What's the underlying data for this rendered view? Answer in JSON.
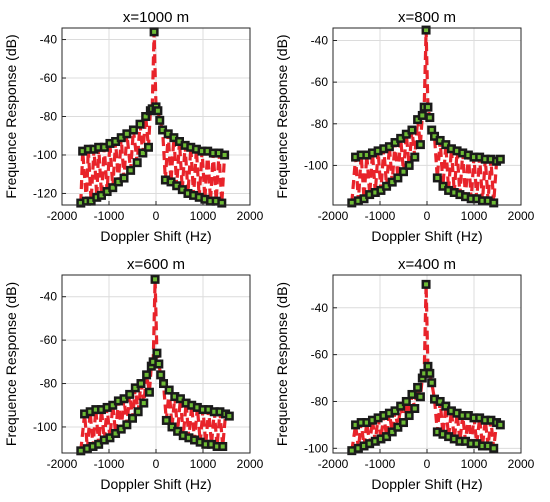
{
  "chart_data": [
    {
      "type": "line",
      "title": "x=1000 m",
      "xlabel": "Doppler Shift (Hz)",
      "ylabel": "Frequence Response (dB)",
      "xlim": [
        -2000,
        2000
      ],
      "ylim": [
        -126,
        -34
      ],
      "xticks": [
        -2000,
        -1000,
        0,
        1000,
        2000
      ],
      "yticks": [
        -40,
        -60,
        -80,
        -100,
        -120
      ],
      "grid": true,
      "series_style": "red dashed line with dark square markers and green centres",
      "points": [
        [
          -1600,
          -125
        ],
        [
          -1560,
          -98
        ],
        [
          -1480,
          -124
        ],
        [
          -1440,
          -97
        ],
        [
          -1380,
          -124
        ],
        [
          -1320,
          -97
        ],
        [
          -1260,
          -122
        ],
        [
          -1220,
          -96
        ],
        [
          -1160,
          -121
        ],
        [
          -1100,
          -96
        ],
        [
          -1040,
          -119
        ],
        [
          -980,
          -94
        ],
        [
          -920,
          -117
        ],
        [
          -860,
          -93
        ],
        [
          -800,
          -114
        ],
        [
          -740,
          -91
        ],
        [
          -680,
          -112
        ],
        [
          -620,
          -89
        ],
        [
          -540,
          -108
        ],
        [
          -480,
          -87
        ],
        [
          -400,
          -104
        ],
        [
          -340,
          -84
        ],
        [
          -280,
          -99
        ],
        [
          -220,
          -80
        ],
        [
          -160,
          -96
        ],
        [
          -120,
          -77
        ],
        [
          -80,
          -76
        ],
        [
          -40,
          -36
        ],
        [
          0,
          -75
        ],
        [
          40,
          -77
        ],
        [
          80,
          -82
        ],
        [
          140,
          -87
        ],
        [
          200,
          -113
        ],
        [
          260,
          -89
        ],
        [
          320,
          -114
        ],
        [
          380,
          -91
        ],
        [
          440,
          -116
        ],
        [
          500,
          -93
        ],
        [
          560,
          -118
        ],
        [
          620,
          -95
        ],
        [
          680,
          -120
        ],
        [
          740,
          -96
        ],
        [
          800,
          -121
        ],
        [
          860,
          -97
        ],
        [
          920,
          -122
        ],
        [
          980,
          -98
        ],
        [
          1040,
          -123
        ],
        [
          1100,
          -98
        ],
        [
          1160,
          -124
        ],
        [
          1220,
          -99
        ],
        [
          1280,
          -124
        ],
        [
          1340,
          -99
        ],
        [
          1400,
          -125
        ],
        [
          1460,
          -100
        ]
      ]
    },
    {
      "type": "line",
      "title": "x=800 m",
      "xlabel": "Doppler Shift (Hz)",
      "ylabel": "Frequence Response (dB)",
      "xlim": [
        -2000,
        2000
      ],
      "ylim": [
        -119,
        -34
      ],
      "xticks": [
        -2000,
        -1000,
        0,
        1000,
        2000
      ],
      "yticks": [
        -40,
        -60,
        -80,
        -100
      ],
      "grid": true,
      "series_style": "red dashed line with dark square markers and green centres",
      "points": [
        [
          -1600,
          -118
        ],
        [
          -1520,
          -96
        ],
        [
          -1460,
          -117
        ],
        [
          -1400,
          -95
        ],
        [
          -1340,
          -116
        ],
        [
          -1280,
          -95
        ],
        [
          -1220,
          -114
        ],
        [
          -1160,
          -94
        ],
        [
          -1100,
          -113
        ],
        [
          -1040,
          -93
        ],
        [
          -980,
          -112
        ],
        [
          -920,
          -92
        ],
        [
          -860,
          -110
        ],
        [
          -800,
          -91
        ],
        [
          -740,
          -108
        ],
        [
          -680,
          -89
        ],
        [
          -620,
          -106
        ],
        [
          -560,
          -87
        ],
        [
          -500,
          -103
        ],
        [
          -440,
          -85
        ],
        [
          -380,
          -100
        ],
        [
          -320,
          -83
        ],
        [
          -260,
          -96
        ],
        [
          -200,
          -78
        ],
        [
          -140,
          -90
        ],
        [
          -100,
          -76
        ],
        [
          -60,
          -72
        ],
        [
          -20,
          -35
        ],
        [
          20,
          -72
        ],
        [
          60,
          -77
        ],
        [
          100,
          -83
        ],
        [
          160,
          -86
        ],
        [
          220,
          -106
        ],
        [
          280,
          -88
        ],
        [
          340,
          -110
        ],
        [
          400,
          -90
        ],
        [
          460,
          -112
        ],
        [
          520,
          -92
        ],
        [
          580,
          -113
        ],
        [
          640,
          -93
        ],
        [
          700,
          -114
        ],
        [
          760,
          -94
        ],
        [
          820,
          -115
        ],
        [
          880,
          -95
        ],
        [
          940,
          -116
        ],
        [
          1000,
          -96
        ],
        [
          1060,
          -116
        ],
        [
          1120,
          -96
        ],
        [
          1180,
          -117
        ],
        [
          1240,
          -97
        ],
        [
          1300,
          -117
        ],
        [
          1360,
          -97
        ],
        [
          1420,
          -118
        ],
        [
          1480,
          -98
        ],
        [
          1560,
          -97
        ]
      ]
    },
    {
      "type": "line",
      "title": "x=600 m",
      "xlabel": "Doppler Shift (Hz)",
      "ylabel": "Frequence Response (dB)",
      "xlim": [
        -2000,
        2000
      ],
      "ylim": [
        -112,
        -30
      ],
      "xticks": [
        -2000,
        -1000,
        0,
        1000,
        2000
      ],
      "yticks": [
        -40,
        -60,
        -80,
        -100
      ],
      "grid": true,
      "series_style": "red dashed line with dark square markers and green centres",
      "points": [
        [
          -1600,
          -111
        ],
        [
          -1520,
          -94
        ],
        [
          -1460,
          -110
        ],
        [
          -1400,
          -93
        ],
        [
          -1340,
          -109
        ],
        [
          -1280,
          -92
        ],
        [
          -1220,
          -108
        ],
        [
          -1160,
          -92
        ],
        [
          -1100,
          -106
        ],
        [
          -1040,
          -91
        ],
        [
          -980,
          -105
        ],
        [
          -920,
          -90
        ],
        [
          -860,
          -103
        ],
        [
          -800,
          -88
        ],
        [
          -740,
          -101
        ],
        [
          -680,
          -87
        ],
        [
          -620,
          -99
        ],
        [
          -560,
          -85
        ],
        [
          -500,
          -96
        ],
        [
          -440,
          -82
        ],
        [
          -380,
          -93
        ],
        [
          -320,
          -80
        ],
        [
          -260,
          -89
        ],
        [
          -200,
          -76
        ],
        [
          -140,
          -84
        ],
        [
          -100,
          -72
        ],
        [
          -60,
          -70
        ],
        [
          -20,
          -32
        ],
        [
          20,
          -66
        ],
        [
          60,
          -71
        ],
        [
          100,
          -76
        ],
        [
          160,
          -80
        ],
        [
          220,
          -97
        ],
        [
          280,
          -83
        ],
        [
          340,
          -100
        ],
        [
          400,
          -86
        ],
        [
          460,
          -102
        ],
        [
          520,
          -87
        ],
        [
          580,
          -104
        ],
        [
          640,
          -89
        ],
        [
          700,
          -105
        ],
        [
          760,
          -90
        ],
        [
          820,
          -106
        ],
        [
          880,
          -91
        ],
        [
          940,
          -107
        ],
        [
          1000,
          -92
        ],
        [
          1060,
          -108
        ],
        [
          1120,
          -92
        ],
        [
          1180,
          -108
        ],
        [
          1240,
          -93
        ],
        [
          1300,
          -109
        ],
        [
          1360,
          -93
        ],
        [
          1420,
          -109
        ],
        [
          1480,
          -94
        ],
        [
          1560,
          -95
        ]
      ]
    },
    {
      "type": "line",
      "title": "x=400 m",
      "xlabel": "Doppler Shift (Hz)",
      "ylabel": "Frequence Response (dB)",
      "xlim": [
        -2000,
        2000
      ],
      "ylim": [
        -102,
        -26
      ],
      "xticks": [
        -2000,
        -1000,
        0,
        1000,
        2000
      ],
      "yticks": [
        -40,
        -60,
        -80,
        -100
      ],
      "grid": true,
      "series_style": "red dashed line with dark square markers and green centres",
      "points": [
        [
          -1600,
          -101
        ],
        [
          -1520,
          -90
        ],
        [
          -1460,
          -100
        ],
        [
          -1400,
          -89
        ],
        [
          -1340,
          -99
        ],
        [
          -1280,
          -89
        ],
        [
          -1220,
          -98
        ],
        [
          -1160,
          -88
        ],
        [
          -1100,
          -97
        ],
        [
          -1040,
          -87
        ],
        [
          -980,
          -96
        ],
        [
          -920,
          -86
        ],
        [
          -860,
          -95
        ],
        [
          -800,
          -85
        ],
        [
          -740,
          -93
        ],
        [
          -680,
          -84
        ],
        [
          -620,
          -91
        ],
        [
          -560,
          -82
        ],
        [
          -500,
          -89
        ],
        [
          -440,
          -80
        ],
        [
          -380,
          -86
        ],
        [
          -320,
          -77
        ],
        [
          -260,
          -83
        ],
        [
          -200,
          -74
        ],
        [
          -140,
          -78
        ],
        [
          -100,
          -70
        ],
        [
          -60,
          -68
        ],
        [
          -20,
          -30
        ],
        [
          20,
          -65
        ],
        [
          60,
          -68
        ],
        [
          100,
          -72
        ],
        [
          160,
          -79
        ],
        [
          220,
          -93
        ],
        [
          280,
          -80
        ],
        [
          340,
          -94
        ],
        [
          400,
          -82
        ],
        [
          460,
          -95
        ],
        [
          520,
          -84
        ],
        [
          580,
          -96
        ],
        [
          640,
          -85
        ],
        [
          700,
          -97
        ],
        [
          760,
          -86
        ],
        [
          820,
          -97
        ],
        [
          880,
          -86
        ],
        [
          940,
          -98
        ],
        [
          1000,
          -87
        ],
        [
          1060,
          -98
        ],
        [
          1120,
          -87
        ],
        [
          1180,
          -99
        ],
        [
          1240,
          -88
        ],
        [
          1300,
          -99
        ],
        [
          1360,
          -88
        ],
        [
          1420,
          -100
        ],
        [
          1480,
          -89
        ],
        [
          1560,
          -90
        ]
      ]
    }
  ],
  "colors": {
    "line": "#e8232a",
    "marker_edge": "#1a1a1a",
    "marker_fill": "#6dbb35",
    "grid": "#dcdcdc",
    "axes": "#262626"
  }
}
